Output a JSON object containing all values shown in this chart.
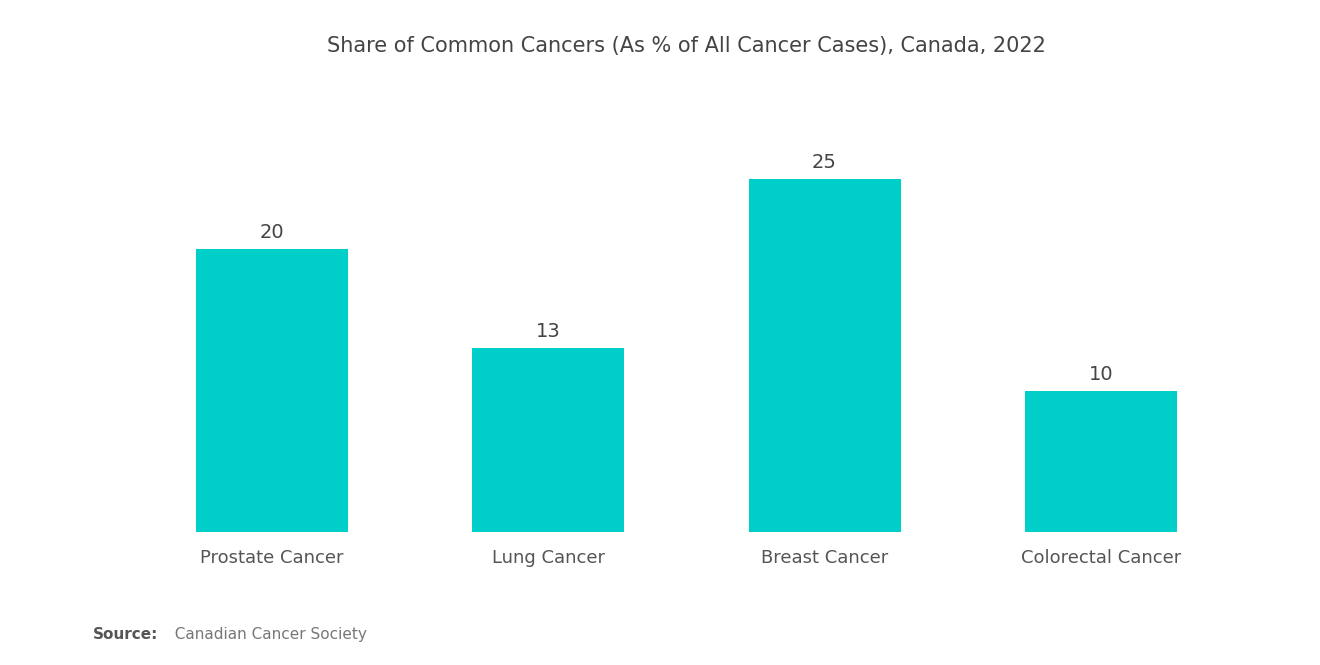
{
  "title": "Share of Common Cancers (As % of All Cancer Cases), Canada, 2022",
  "categories": [
    "Prostate Cancer",
    "Lung Cancer",
    "Breast Cancer",
    "Colorectal Cancer"
  ],
  "values": [
    20,
    13,
    25,
    10
  ],
  "bar_color": "#00CEC9",
  "background_color": "#ffffff",
  "title_fontsize": 15,
  "label_fontsize": 13,
  "value_fontsize": 14,
  "source_bold": "Source:",
  "source_rest": "  Canadian Cancer Society",
  "ylim": [
    0,
    32
  ],
  "bar_width": 0.55
}
